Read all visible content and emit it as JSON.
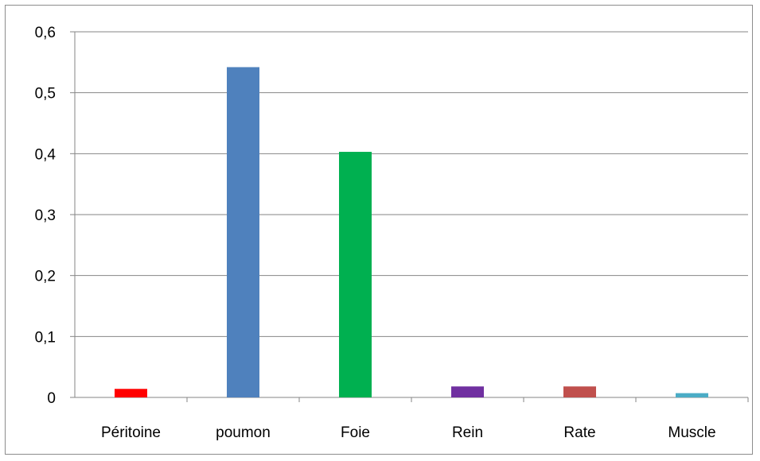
{
  "chart_data": {
    "type": "bar",
    "title": "",
    "xlabel": "",
    "ylabel": "",
    "categories": [
      "Péritoine",
      "poumon",
      "Foie",
      "Rein",
      "Rate",
      "Muscle"
    ],
    "values": [
      0.014,
      0.542,
      0.403,
      0.018,
      0.018,
      0.007
    ],
    "colors": [
      "#ff0000",
      "#4f81bd",
      "#00b050",
      "#7030a0",
      "#c0504d",
      "#4bacc6"
    ],
    "ylim": [
      0,
      0.6
    ],
    "yticks": [
      0,
      0.1,
      0.2,
      0.3,
      0.4,
      0.5,
      0.6
    ],
    "ytick_labels": [
      "0",
      "0,1",
      "0,2",
      "0,3",
      "0,4",
      "0,5",
      "0,6"
    ],
    "grid": true,
    "legend": "none"
  }
}
